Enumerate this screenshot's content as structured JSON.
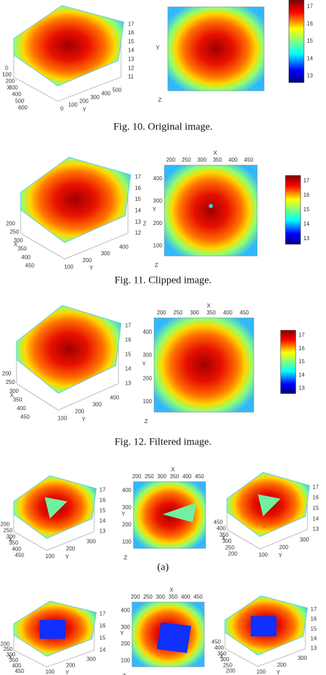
{
  "figures": [
    {
      "caption": "Fig. 10.  Original image.",
      "panels": [
        {
          "kind": "surface",
          "x_label": "X",
          "x_ticks": [
            "0",
            "100",
            "200",
            "300",
            "400",
            "500",
            "600"
          ],
          "y_label": "Y",
          "y_ticks": [
            "0",
            "100",
            "200",
            "300",
            "400",
            "500"
          ],
          "z_ticks": [
            "17",
            "16",
            "15",
            "14",
            "13",
            "12",
            "11"
          ]
        },
        {
          "kind": "heatmap",
          "y_label": "Y",
          "z_label": "Z"
        },
        {
          "kind": "colorbar",
          "ticks": [
            "17",
            "16",
            "15",
            "14",
            "13"
          ]
        }
      ]
    },
    {
      "caption": "Fig. 11.  Clipped image.",
      "panels": [
        {
          "kind": "surface",
          "x_label": "X",
          "x_ticks": [
            "200",
            "250",
            "300",
            "350",
            "400",
            "450"
          ],
          "y_label": "Y",
          "y_ticks": [
            "100",
            "200",
            "300",
            "400"
          ],
          "z_ticks": [
            "17",
            "16",
            "15",
            "14",
            "13",
            "12"
          ],
          "z_label": "Z"
        },
        {
          "kind": "heatmap",
          "x_label": "X",
          "x_ticks": [
            "200",
            "250",
            "300",
            "350",
            "400",
            "450"
          ],
          "y_label": "Y",
          "y_ticks": [
            "400",
            "300",
            "200",
            "100"
          ],
          "z_label": "Z"
        },
        {
          "kind": "colorbar",
          "ticks": [
            "17",
            "16",
            "15",
            "14",
            "13"
          ]
        }
      ]
    },
    {
      "caption": "Fig. 12.  Filtered image.",
      "panels": [
        {
          "kind": "surface",
          "x_label": "X",
          "x_ticks": [
            "200",
            "250",
            "300",
            "350",
            "400",
            "450"
          ],
          "y_label": "Y",
          "y_ticks": [
            "100",
            "200",
            "300",
            "400"
          ],
          "z_ticks": [
            "17",
            "16",
            "15",
            "14",
            "13"
          ]
        },
        {
          "kind": "heatmap",
          "x_label": "X",
          "x_ticks": [
            "200",
            "250",
            "300",
            "350",
            "400",
            "450"
          ],
          "y_label": "Y",
          "y_ticks": [
            "400",
            "300",
            "200",
            "100"
          ],
          "z_label": "Z"
        },
        {
          "kind": "colorbar",
          "ticks": [
            "17",
            "16",
            "15",
            "14",
            "13"
          ]
        }
      ]
    },
    {
      "caption": "(a)",
      "panels": [
        {
          "kind": "surface",
          "x_label": "X",
          "x_ticks": [
            "200",
            "250",
            "300",
            "350",
            "400",
            "450"
          ],
          "y_label": "Y",
          "y_ticks": [
            "100",
            "200",
            "300"
          ],
          "z_ticks": [
            "17",
            "16",
            "15",
            "14",
            "13"
          ]
        },
        {
          "kind": "heatmap",
          "x_label": "X",
          "x_ticks": [
            "200",
            "250",
            "300",
            "350",
            "400",
            "450"
          ],
          "y_label": "Y",
          "y_ticks": [
            "400",
            "300",
            "200",
            "100"
          ],
          "z_label": "Z"
        },
        {
          "kind": "surface",
          "x_label": "X",
          "x_ticks": [
            "450",
            "400",
            "350",
            "300",
            "250",
            "200"
          ],
          "y_label": "Y",
          "y_ticks": [
            "100",
            "200",
            "300"
          ],
          "z_ticks": [
            "17",
            "16",
            "15",
            "14",
            "13"
          ]
        }
      ]
    },
    {
      "panels": [
        {
          "kind": "surface",
          "x_label": "X",
          "x_ticks": [
            "200",
            "250",
            "300",
            "350",
            "400",
            "450"
          ],
          "y_label": "Y",
          "y_ticks": [
            "100",
            "200",
            "300"
          ],
          "z_ticks": [
            "17",
            "16",
            "15",
            "14"
          ]
        },
        {
          "kind": "heatmap",
          "x_label": "X",
          "x_ticks": [
            "200",
            "250",
            "300",
            "350",
            "400",
            "450"
          ],
          "y_label": "Y",
          "y_ticks": [
            "400",
            "300",
            "200",
            "100"
          ],
          "z_label": "Z"
        },
        {
          "kind": "surface",
          "x_label": "X",
          "x_ticks": [
            "450",
            "400",
            "350",
            "300",
            "250",
            "200"
          ],
          "y_label": "Y",
          "y_ticks": [
            "100",
            "200",
            "300"
          ],
          "z_ticks": [
            "17",
            "16",
            "15",
            "14",
            "13"
          ]
        }
      ]
    }
  ]
}
